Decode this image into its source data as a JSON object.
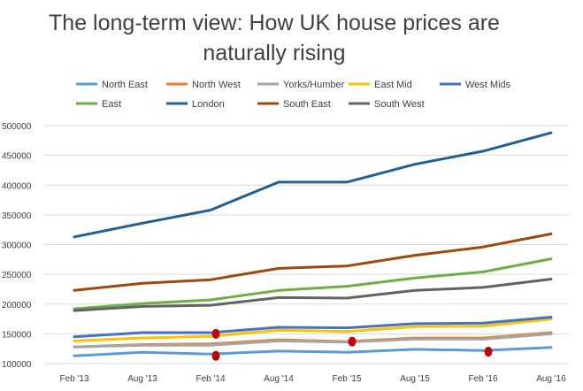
{
  "chart_data": {
    "type": "line",
    "title_lines": [
      "The long-term view: How UK house prices are",
      "naturally rising"
    ],
    "categories": [
      "Feb '13",
      "Aug '13",
      "Feb '14",
      "Aug '14",
      "Feb '15",
      "Aug '15",
      "Feb '16",
      "Aug '16"
    ],
    "y_ticks": [
      "100000",
      "150000",
      "200000",
      "250000",
      "300000",
      "350000",
      "400000",
      "450000",
      "500000"
    ],
    "ylim": [
      100000,
      500000
    ],
    "grid": true,
    "legend_position": "top",
    "series": [
      {
        "name": "North East",
        "color": "#5b9bd5",
        "values": [
          113000,
          119000,
          116000,
          121000,
          119000,
          124000,
          122000,
          127000
        ]
      },
      {
        "name": "North West",
        "color": "#ed7d31",
        "values": [
          128000,
          132000,
          133000,
          140000,
          137000,
          143000,
          143000,
          152000
        ]
      },
      {
        "name": "Yorks/Humber",
        "color": "#a5a5a5",
        "values": [
          128000,
          131000,
          131000,
          138000,
          136000,
          141000,
          141000,
          150000
        ]
      },
      {
        "name": "East Mid",
        "color": "#ffc000",
        "values": [
          138000,
          143000,
          146000,
          156000,
          154000,
          162000,
          163000,
          175000
        ]
      },
      {
        "name": "West Mids",
        "color": "#4472c4",
        "values": [
          145000,
          152000,
          152000,
          161000,
          160000,
          167000,
          168000,
          178000
        ]
      },
      {
        "name": "East",
        "color": "#70ad47",
        "values": [
          192000,
          201000,
          207000,
          223000,
          230000,
          244000,
          254000,
          276000
        ]
      },
      {
        "name": "London",
        "color": "#255e91",
        "values": [
          313000,
          336000,
          358000,
          405000,
          405000,
          435000,
          457000,
          488000
        ]
      },
      {
        "name": "South East",
        "color": "#9e480e",
        "values": [
          223000,
          235000,
          241000,
          260000,
          264000,
          282000,
          296000,
          318000
        ]
      },
      {
        "name": "South West",
        "color": "#636363",
        "values": [
          189000,
          196000,
          198000,
          211000,
          210000,
          223000,
          228000,
          242000
        ]
      }
    ],
    "annotations": [
      {
        "type": "red-dot",
        "category": "Feb '14",
        "value": 150000,
        "color": "#c00000"
      },
      {
        "type": "red-dot",
        "category": "Feb '14",
        "value": 113000,
        "color": "#c00000"
      },
      {
        "type": "red-dot",
        "category": "Feb '15",
        "value": 137000,
        "color": "#c00000"
      },
      {
        "type": "red-dot",
        "category": "Feb '16",
        "value": 120000,
        "color": "#c00000"
      }
    ]
  }
}
